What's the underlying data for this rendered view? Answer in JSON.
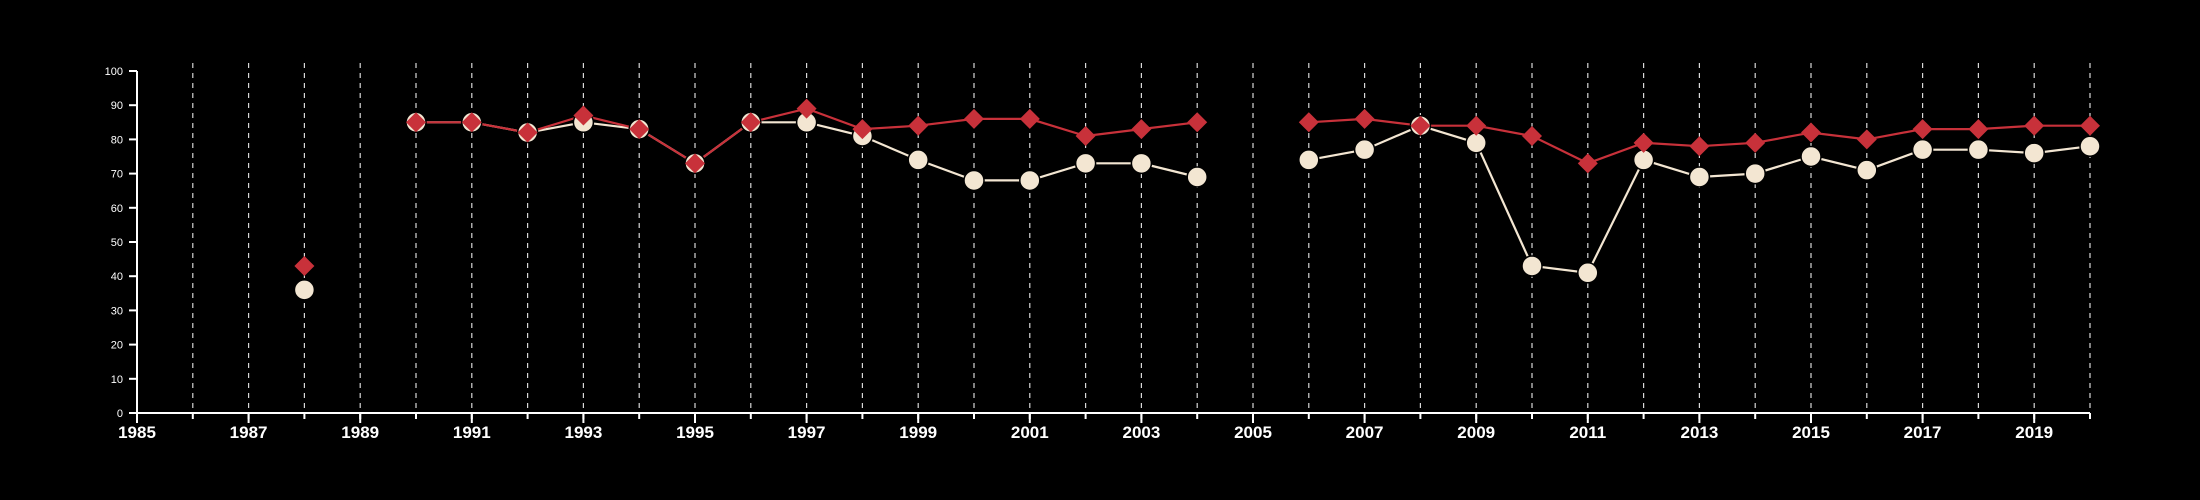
{
  "chart_data": {
    "type": "line",
    "title": "",
    "xlabel": "",
    "ylabel": "",
    "xlim": [
      1985,
      2020
    ],
    "ylim": [
      0,
      100
    ],
    "x_ticks": [
      1985,
      1987,
      1989,
      1991,
      1993,
      1995,
      1997,
      1999,
      2001,
      2003,
      2005,
      2007,
      2009,
      2011,
      2013,
      2015,
      2017,
      2019
    ],
    "y_ticks": [
      0,
      10,
      20,
      30,
      40,
      50,
      60,
      70,
      80,
      90,
      100
    ],
    "grid": {
      "vertical_dashed_yearly": true,
      "from": 1986,
      "to": 2020
    },
    "background": "#000000",
    "axis_color": "#ffffff",
    "series": [
      {
        "marker": "diamond",
        "color": "#c8313a",
        "points": [
          [
            1988,
            43
          ],
          [
            1990,
            85
          ],
          [
            1991,
            85
          ],
          [
            1992,
            82
          ],
          [
            1993,
            87
          ],
          [
            1994,
            83
          ],
          [
            1995,
            73
          ],
          [
            1996,
            85
          ],
          [
            1997,
            89
          ],
          [
            1998,
            83
          ],
          [
            1999,
            84
          ],
          [
            2000,
            86
          ],
          [
            2001,
            86
          ],
          [
            2002,
            81
          ],
          [
            2003,
            83
          ],
          [
            2004,
            85
          ],
          [
            2006,
            85
          ],
          [
            2007,
            86
          ],
          [
            2008,
            84
          ],
          [
            2009,
            84
          ],
          [
            2010,
            81
          ],
          [
            2011,
            73
          ],
          [
            2012,
            79
          ],
          [
            2013,
            78
          ],
          [
            2014,
            79
          ],
          [
            2015,
            82
          ],
          [
            2016,
            80
          ],
          [
            2017,
            83
          ],
          [
            2018,
            83
          ],
          [
            2019,
            84
          ],
          [
            2020,
            84
          ]
        ]
      },
      {
        "marker": "circle",
        "color": "#f3e6d2",
        "points": [
          [
            1988,
            36
          ],
          [
            1990,
            85
          ],
          [
            1991,
            85
          ],
          [
            1992,
            82
          ],
          [
            1993,
            85
          ],
          [
            1994,
            83
          ],
          [
            1995,
            73
          ],
          [
            1996,
            85
          ],
          [
            1997,
            85
          ],
          [
            1998,
            81
          ],
          [
            1999,
            74
          ],
          [
            2000,
            68
          ],
          [
            2001,
            68
          ],
          [
            2002,
            73
          ],
          [
            2003,
            73
          ],
          [
            2004,
            69
          ],
          [
            2006,
            74
          ],
          [
            2007,
            77
          ],
          [
            2008,
            84
          ],
          [
            2009,
            79
          ],
          [
            2010,
            43
          ],
          [
            2011,
            41
          ],
          [
            2012,
            74
          ],
          [
            2013,
            69
          ],
          [
            2014,
            70
          ],
          [
            2015,
            75
          ],
          [
            2016,
            71
          ],
          [
            2017,
            77
          ],
          [
            2018,
            77
          ],
          [
            2019,
            76
          ],
          [
            2020,
            78
          ]
        ]
      }
    ]
  }
}
